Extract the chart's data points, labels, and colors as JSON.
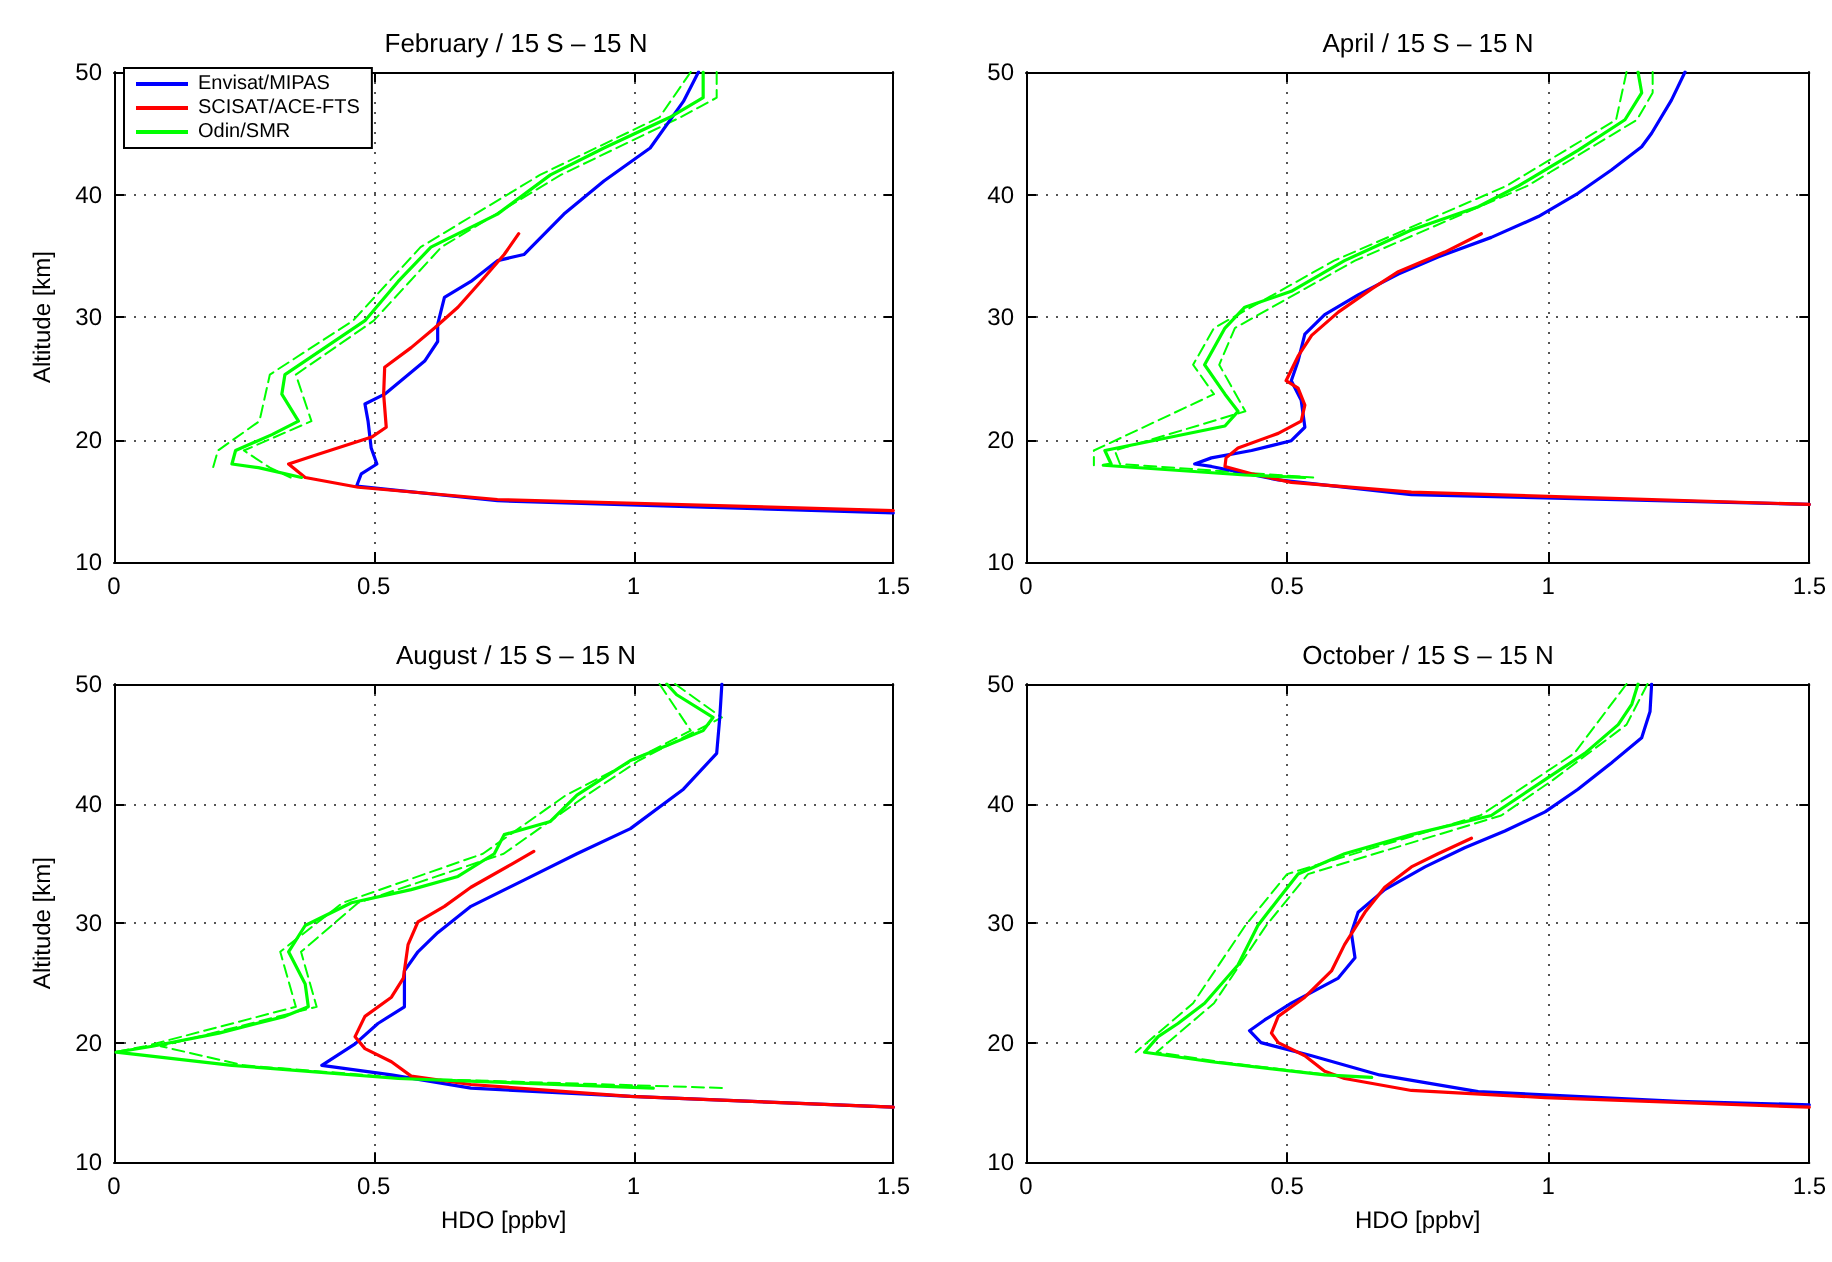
{
  "chart_data": [
    {
      "type": "line",
      "title": "February / 15 S – 15 N",
      "ylabel": "Altitude [km]",
      "xlim": [
        0,
        1.5
      ],
      "xticks": [
        0,
        0.5,
        1,
        1.5
      ],
      "ylim": [
        10,
        50
      ],
      "yticks": [
        10,
        20,
        30,
        40,
        50
      ],
      "grid": true,
      "legend": "top left",
      "line_style": "solid",
      "marker": "none",
      "series": [
        {
          "name": "Envisat/MIPAS",
          "color": "#0000ff",
          "x": [
            1.125,
            1.096,
            1.032,
            0.943,
            0.866,
            0.789,
            0.738,
            0.687,
            0.636,
            0.623,
            0.623,
            0.598,
            0.521,
            0.483,
            0.489,
            0.495,
            0.506,
            0.476,
            0.467,
            0.738,
            1.5
          ],
          "values": [
            50,
            47.6,
            43.8,
            41.1,
            38.4,
            35.1,
            34.6,
            32.9,
            31.6,
            29.4,
            28,
            26.4,
            23.7,
            22.9,
            21.5,
            19.3,
            18,
            17.2,
            16.2,
            15,
            14
          ]
        },
        {
          "name": "SCISAT/ACE-FTS",
          "color": "#ff0000",
          "x": [
            0.779,
            0.751,
            0.706,
            0.662,
            0.617,
            0.572,
            0.521,
            0.519,
            0.524,
            0.496,
            0.393,
            0.336,
            0.368,
            0.47,
            0.738,
            1.5
          ],
          "values": [
            36.8,
            35.1,
            32.9,
            30.8,
            29.1,
            27.5,
            25.9,
            23.7,
            21,
            20.2,
            18.8,
            18,
            16.9,
            16.1,
            15.1,
            14.2
          ]
        },
        {
          "name": "Odin/SMR",
          "color": "#00ff00",
          "x": [
            1.134,
            1.134,
            1.07,
            0.943,
            0.84,
            0.738,
            0.61,
            0.547,
            0.483,
            0.406,
            0.329,
            0.323,
            0.355,
            0.304,
            0.234,
            0.227,
            0.278,
            0.361
          ],
          "values": [
            50,
            47.9,
            46.3,
            43.8,
            41.6,
            38.4,
            35.7,
            32.9,
            29.7,
            27.5,
            25.3,
            23.7,
            21.5,
            20.4,
            19.1,
            18,
            17.7,
            16.9
          ]
        },
        {
          "color": "#00ff00",
          "line_style": "dashed",
          "x": [
            1.11,
            1.05,
            0.82,
            0.59,
            0.46,
            0.3,
            0.28,
            0.2,
            0.19
          ],
          "values": [
            50,
            46.3,
            41.6,
            35.7,
            29.7,
            25.3,
            21.5,
            19.1,
            17.6
          ]
        },
        {
          "color": "#00ff00",
          "line_style": "dashed",
          "x": [
            1.16,
            1.16,
            1.09,
            0.86,
            0.63,
            0.5,
            0.35,
            0.38,
            0.25,
            0.3,
            0.34
          ],
          "values": [
            50,
            47.9,
            46.3,
            41.6,
            35.7,
            29.7,
            25.3,
            21.5,
            19.1,
            17.7,
            16.9
          ]
        }
      ]
    },
    {
      "type": "line",
      "title": "April / 15 S – 15 N",
      "xlim": [
        0,
        1.5
      ],
      "xticks": [
        0,
        0.5,
        1,
        1.5
      ],
      "ylim": [
        10,
        50
      ],
      "yticks": [
        10,
        20,
        30,
        40,
        50
      ],
      "grid": true,
      "line_style": "solid",
      "marker": "none",
      "series": [
        {
          "color": "#0000ff",
          "x": [
            1.262,
            1.236,
            1.198,
            1.179,
            1.121,
            1.057,
            0.981,
            0.891,
            0.789,
            0.713,
            0.636,
            0.572,
            0.534,
            0.521,
            0.508,
            0.527,
            0.534,
            0.508,
            0.432,
            0.355,
            0.323,
            0.355,
            0.483,
            0.738,
            1.5
          ],
          "values": [
            50,
            47.7,
            45,
            43.9,
            42,
            40.1,
            38.2,
            36.5,
            34.9,
            33.5,
            31.8,
            30.2,
            28.6,
            26.4,
            24.8,
            23.2,
            21,
            19.9,
            19.1,
            18.5,
            18,
            17.8,
            16.7,
            15.5,
            14.7
          ]
        },
        {
          "color": "#ff0000",
          "x": [
            0.872,
            0.802,
            0.713,
            0.662,
            0.598,
            0.547,
            0.521,
            0.498,
            0.521,
            0.534,
            0.527,
            0.483,
            0.406,
            0.383,
            0.381,
            0.432,
            0.508,
            0.738,
            1.5
          ],
          "values": [
            36.8,
            35.3,
            33.7,
            32.3,
            30.4,
            28.5,
            26.8,
            24.8,
            24.2,
            22.8,
            21.5,
            20.5,
            19.3,
            18.5,
            17.8,
            17.2,
            16.5,
            15.7,
            14.7
          ]
        },
        {
          "color": "#00ff00",
          "x": [
            1.172,
            1.179,
            1.147,
            1.057,
            0.943,
            0.866,
            0.738,
            0.61,
            0.508,
            0.419,
            0.381,
            0.342,
            0.381,
            0.406,
            0.381,
            0.278,
            0.151,
            0.163,
            0.148,
            0.419,
            0.534
          ],
          "values": [
            50,
            48.3,
            46.1,
            43.6,
            40.7,
            39,
            37.1,
            34.6,
            32.1,
            30.8,
            29.1,
            26.1,
            23.7,
            22.3,
            21.1,
            20.2,
            19.1,
            18,
            17.9,
            17.1,
            16.9
          ]
        },
        {
          "color": "#00ff00",
          "line_style": "dashed",
          "x": [
            1.15,
            1.13,
            0.92,
            0.59,
            0.36,
            0.32,
            0.36,
            0.13,
            0.13
          ],
          "values": [
            50,
            46.1,
            40.7,
            34.6,
            29.1,
            26.1,
            23.7,
            19.1,
            17.9
          ]
        },
        {
          "color": "#00ff00",
          "line_style": "dashed",
          "x": [
            1.2,
            1.2,
            1.17,
            0.96,
            0.63,
            0.4,
            0.37,
            0.42,
            0.17,
            0.18,
            0.55
          ],
          "values": [
            50,
            48.3,
            46.1,
            40.7,
            34.6,
            29.1,
            26.1,
            22.3,
            19.1,
            18,
            16.9
          ]
        }
      ]
    },
    {
      "type": "line",
      "title": "August / 15 S – 15 N",
      "xlabel": "HDO [ppbv]",
      "ylabel": "Altitude [km]",
      "xlim": [
        0,
        1.5
      ],
      "xticks": [
        0,
        0.5,
        1,
        1.5
      ],
      "ylim": [
        10,
        50
      ],
      "yticks": [
        10,
        20,
        30,
        40,
        50
      ],
      "grid": true,
      "line_style": "solid",
      "marker": "none",
      "series": [
        {
          "color": "#0000ff",
          "x": [
            1.17,
            1.166,
            1.16,
            1.096,
            0.994,
            0.891,
            0.789,
            0.687,
            0.623,
            0.585,
            0.559,
            0.559,
            0.508,
            0.464,
            0.4,
            0.534,
            0.687,
            0.994,
            1.5
          ],
          "values": [
            50,
            47.2,
            44.2,
            41.2,
            37.9,
            35.8,
            33.6,
            31.4,
            29.2,
            27.6,
            26,
            23,
            21.6,
            19.9,
            18.1,
            17.3,
            16.2,
            15.5,
            14.6
          ]
        },
        {
          "color": "#ff0000",
          "x": [
            0.808,
            0.764,
            0.687,
            0.636,
            0.585,
            0.566,
            0.557,
            0.534,
            0.483,
            0.464,
            0.483,
            0.534,
            0.572,
            0.687,
            0.994,
            1.5
          ],
          "values": [
            36,
            34.9,
            33,
            31.4,
            30.1,
            28.2,
            25.4,
            23.8,
            22.2,
            20.5,
            19.5,
            18.4,
            17.2,
            16.5,
            15.5,
            14.6
          ]
        },
        {
          "color": "#00ff00",
          "x": [
            1.064,
            1.083,
            1.153,
            1.134,
            0.994,
            0.891,
            0.84,
            0.751,
            0.732,
            0.662,
            0.572,
            0.457,
            0.368,
            0.336,
            0.368,
            0.374,
            0.329,
            0.202,
            0.074,
            0.004,
            0.227,
            0.547,
            1.038
          ],
          "values": [
            50,
            49.1,
            47.2,
            46.1,
            43.6,
            40.7,
            38.5,
            37.4,
            35.8,
            33.9,
            32.8,
            31.7,
            29.8,
            27.6,
            24.9,
            23,
            22.2,
            20.8,
            19.7,
            19.2,
            18.1,
            17,
            16.2
          ]
        },
        {
          "color": "#00ff00",
          "line_style": "dashed",
          "x": [
            1.05,
            1.11,
            0.87,
            0.71,
            0.44,
            0.32,
            0.35,
            0.06,
            0
          ],
          "values": [
            50,
            46.1,
            40.7,
            35.8,
            31.7,
            27.6,
            23,
            19.7,
            19.2
          ]
        },
        {
          "color": "#00ff00",
          "line_style": "dashed",
          "x": [
            1.08,
            1.17,
            1.01,
            0.91,
            0.75,
            0.47,
            0.36,
            0.39,
            0.09,
            0.25,
            0.57,
            1.18
          ],
          "values": [
            50,
            47.2,
            43.6,
            40.7,
            35.8,
            31.7,
            27.6,
            23,
            19.7,
            18.1,
            17,
            16.2
          ]
        }
      ]
    },
    {
      "type": "line",
      "title": "October / 15 S – 15 N",
      "xlabel": "HDO [ppbv]",
      "xlim": [
        0,
        1.5
      ],
      "xticks": [
        0,
        0.5,
        1,
        1.5
      ],
      "ylim": [
        10,
        50
      ],
      "yticks": [
        10,
        20,
        30,
        40,
        50
      ],
      "grid": true,
      "line_style": "solid",
      "marker": "none",
      "series": [
        {
          "color": "#0000ff",
          "x": [
            1.198,
            1.195,
            1.179,
            1.121,
            1.057,
            0.994,
            0.917,
            0.84,
            0.764,
            0.687,
            0.636,
            0.623,
            0.63,
            0.598,
            0.508,
            0.457,
            0.428,
            0.45,
            0.547,
            0.677,
            0.866,
            1.249,
            1.5
          ],
          "values": [
            50,
            47.7,
            45.5,
            43.4,
            41.2,
            39.3,
            37.7,
            36.3,
            34.7,
            32.8,
            30.9,
            29.2,
            27.1,
            25.4,
            23.3,
            21.9,
            21,
            20,
            18.9,
            17.3,
            15.9,
            15.1,
            14.8
          ]
        },
        {
          "color": "#ff0000",
          "x": [
            0.853,
            0.789,
            0.738,
            0.687,
            0.649,
            0.61,
            0.585,
            0.534,
            0.483,
            0.47,
            0.483,
            0.534,
            0.572,
            0.61,
            0.738,
            0.994,
            1.5
          ],
          "values": [
            37.1,
            35.8,
            34.7,
            33,
            30.9,
            28.2,
            26,
            23.8,
            22.2,
            20.8,
            20,
            18.9,
            17.6,
            17,
            16,
            15.4,
            14.6
          ]
        },
        {
          "color": "#00ff00",
          "x": [
            1.172,
            1.16,
            1.134,
            1.07,
            0.994,
            0.891,
            0.738,
            0.61,
            0.521,
            0.483,
            0.444,
            0.406,
            0.342,
            0.291,
            0.253,
            0.227,
            0.355,
            0.572,
            0.662
          ],
          "values": [
            50,
            48.3,
            46.6,
            44.2,
            42,
            39,
            37.4,
            35.8,
            34.1,
            32,
            29.8,
            26.5,
            23.3,
            21.6,
            20.5,
            19.2,
            18.4,
            17.3,
            17.1
          ]
        },
        {
          "color": "#00ff00",
          "line_style": "dashed",
          "x": [
            1.15,
            1.05,
            0.87,
            0.5,
            0.42,
            0.32,
            0.21
          ],
          "values": [
            50,
            44.2,
            39,
            34.1,
            29.8,
            23.3,
            19.2
          ]
        },
        {
          "color": "#00ff00",
          "line_style": "dashed",
          "x": [
            1.19,
            1.15,
            1.01,
            0.91,
            0.54,
            0.46,
            0.36,
            0.25,
            0.37,
            0.58
          ],
          "values": [
            50,
            46.6,
            42,
            39,
            34.1,
            29.8,
            23.3,
            19.2,
            18.4,
            17.3
          ]
        }
      ]
    }
  ]
}
